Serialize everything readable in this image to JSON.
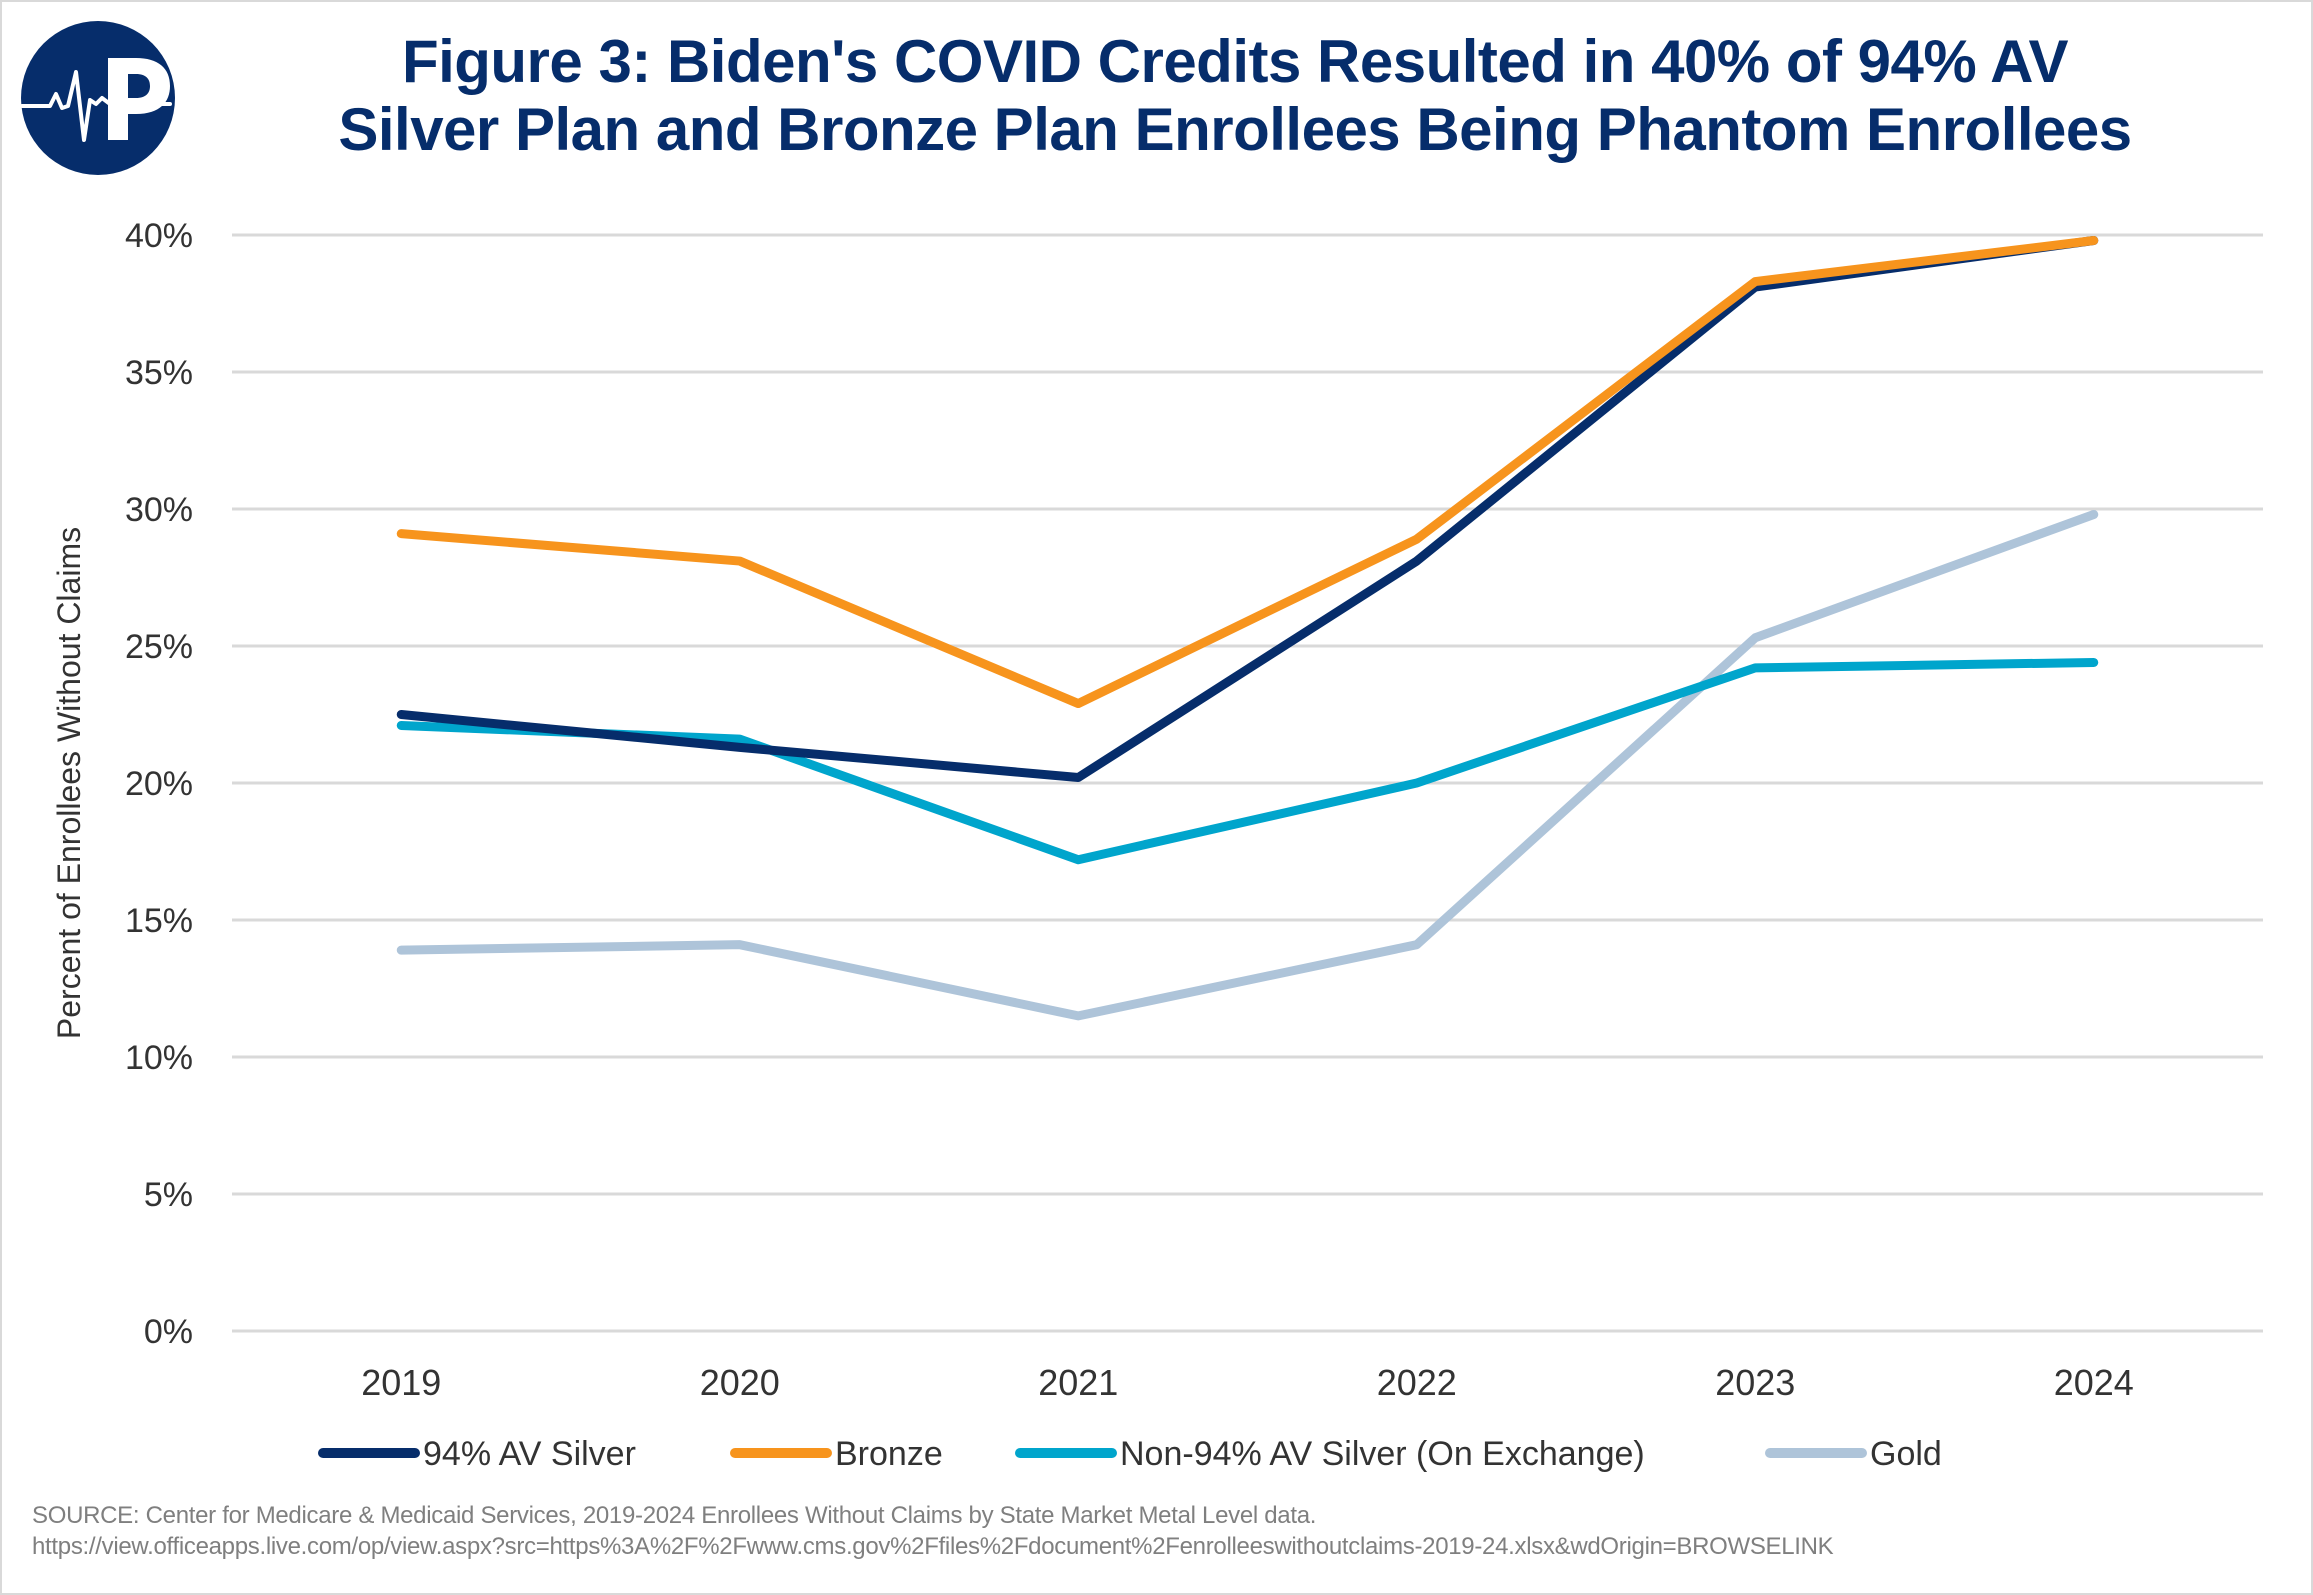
{
  "header": {
    "logo": "heartbeat-p-logo",
    "title_lines": [
      "Figure 3: Biden's COVID Credits Resulted in 40% of 94% AV",
      "Silver Plan and Bronze Plan Enrollees Being Phantom Enrollees"
    ]
  },
  "chart_data": {
    "type": "line",
    "title": "Figure 3: Biden's COVID Credits Resulted in 40% of 94% AV Silver Plan and Bronze Plan Enrollees Being Phantom Enrollees",
    "xlabel": "",
    "ylabel": "Percent of Enrollees Without Claims",
    "categories": [
      "2019",
      "2020",
      "2021",
      "2022",
      "2023",
      "2024"
    ],
    "ylim": [
      0,
      40
    ],
    "yticks": [
      0,
      5,
      10,
      15,
      20,
      25,
      30,
      35,
      40
    ],
    "ytick_labels": [
      "0%",
      "5%",
      "10%",
      "15%",
      "20%",
      "25%",
      "30%",
      "35%",
      "40%"
    ],
    "grid": "horizontal",
    "legend_position": "bottom",
    "series": [
      {
        "name": "94% AV Silver",
        "color": "#062d6b",
        "values": [
          22.5,
          21.3,
          20.2,
          28.1,
          38.1,
          39.8
        ]
      },
      {
        "name": "Bronze",
        "color": "#f7941d",
        "values": [
          29.1,
          28.1,
          22.9,
          28.9,
          38.3,
          39.8
        ]
      },
      {
        "name": "Non-94% AV Silver (On Exchange)",
        "color": "#00a5cc",
        "values": [
          22.1,
          21.6,
          17.2,
          20.0,
          24.2,
          24.4
        ]
      },
      {
        "name": "Gold",
        "color": "#aec4d9",
        "values": [
          13.9,
          14.1,
          11.5,
          14.1,
          25.3,
          29.8
        ]
      }
    ]
  },
  "footer": {
    "source_line1": "SOURCE: Center for Medicare & Medicaid Services, 2019-2024 Enrollees Without Claims by State Market Metal Level data.",
    "source_line2": "https://view.officeapps.live.com/op/view.aspx?src=https%3A%2F%2Fwww.cms.gov%2Ffiles%2Fdocument%2Fenrolleeswithoutclaims-2019-24.xlsx&wdOrigin=BROWSELINK"
  }
}
